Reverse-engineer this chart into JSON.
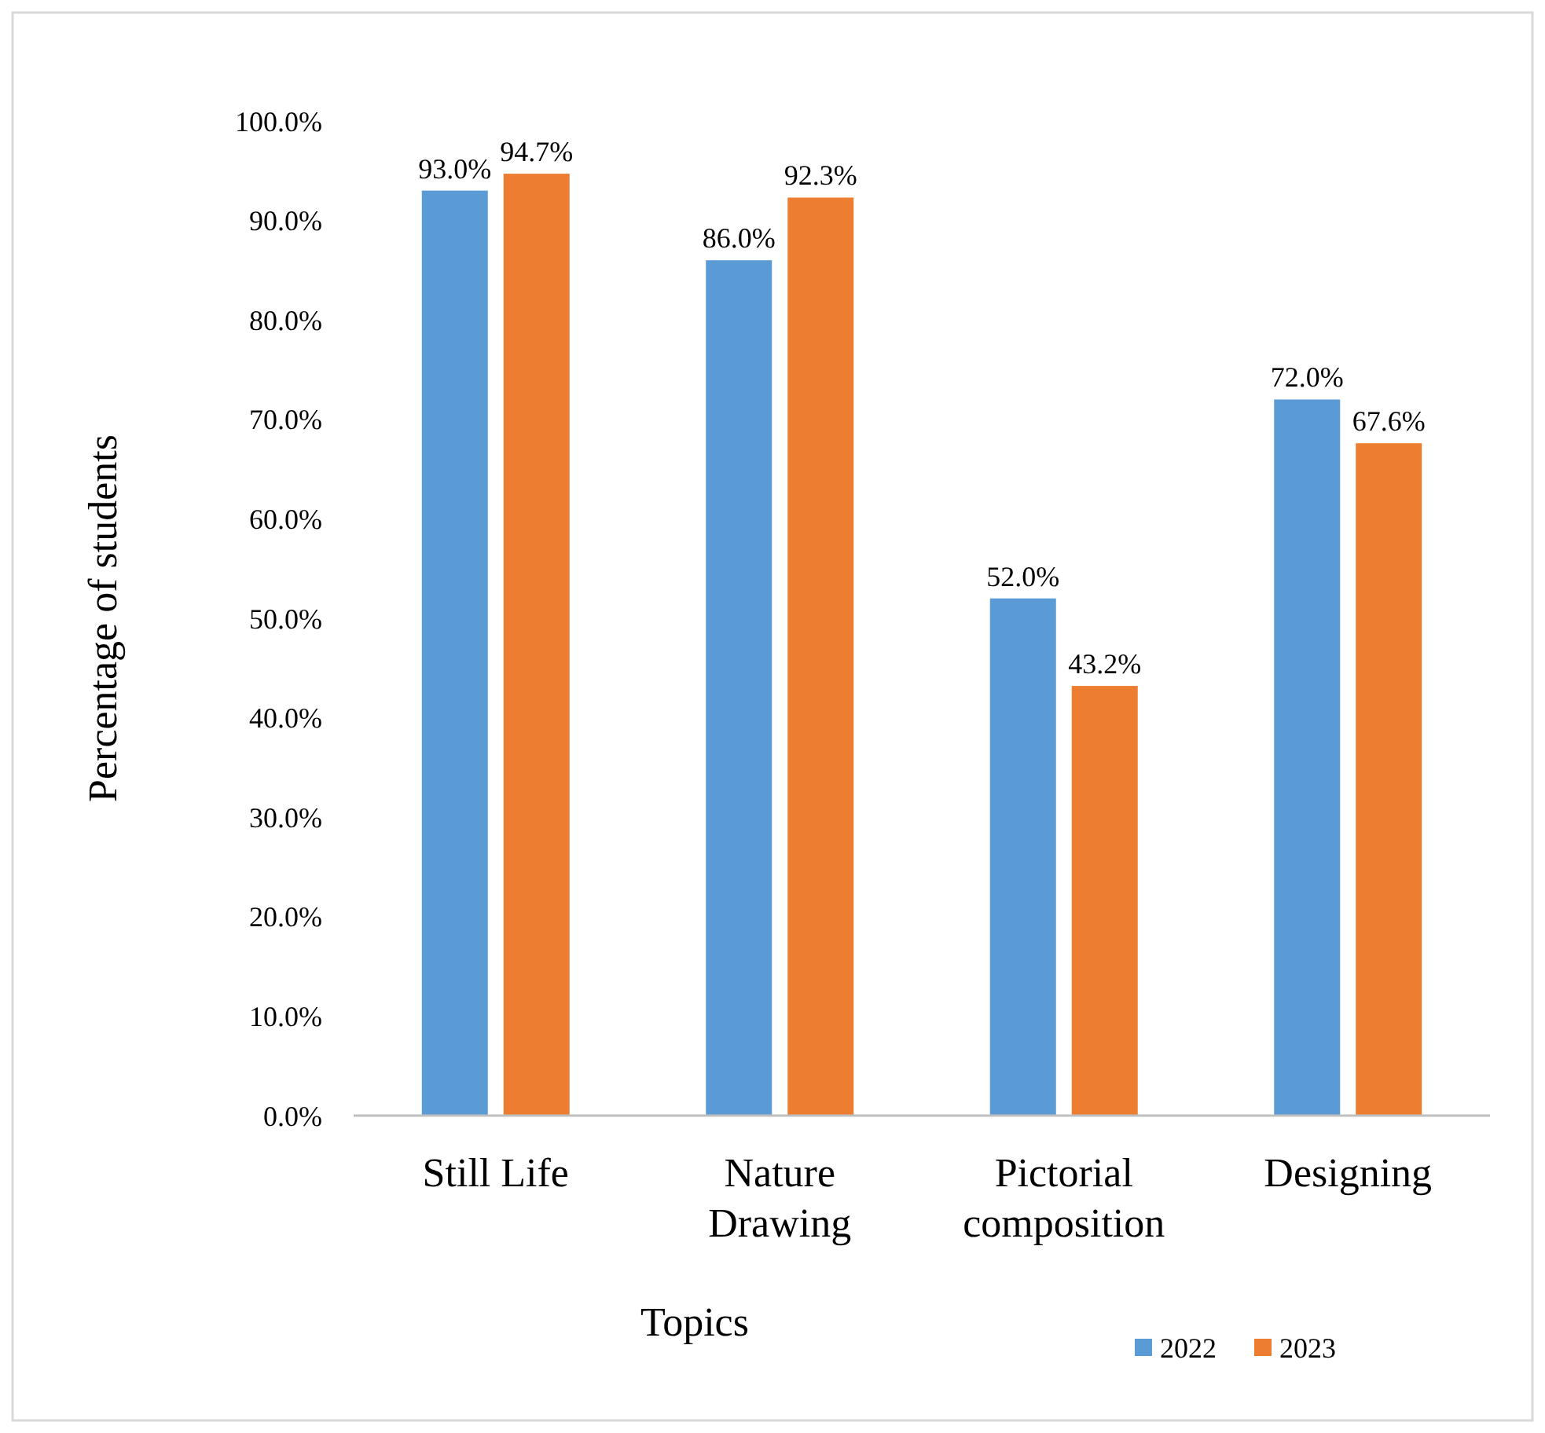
{
  "chart_data": {
    "type": "bar",
    "xlabel": "Topics",
    "ylabel": "Percentage of students",
    "categories": [
      "Still Life",
      "Nature Drawing",
      "Pictorial composition",
      "Designing"
    ],
    "series": [
      {
        "name": "2022",
        "color": "#5b9bd5",
        "values": [
          93.0,
          86.0,
          52.0,
          72.0
        ],
        "value_labels": [
          "93.0%",
          "86.0%",
          "52.0%",
          "72.0%"
        ]
      },
      {
        "name": "2023",
        "color": "#ed7d31",
        "values": [
          94.7,
          92.3,
          43.2,
          67.6
        ],
        "value_labels": [
          "94.7%",
          "92.3%",
          "43.2%",
          "67.6%"
        ]
      }
    ],
    "ylim": [
      0,
      100
    ],
    "yticks": [
      {
        "value": 0,
        "label": "0.0%"
      },
      {
        "value": 10,
        "label": "10.0%"
      },
      {
        "value": 20,
        "label": "20.0%"
      },
      {
        "value": 30,
        "label": "30.0%"
      },
      {
        "value": 40,
        "label": "40.0%"
      },
      {
        "value": 50,
        "label": "50.0%"
      },
      {
        "value": 60,
        "label": "60.0%"
      },
      {
        "value": 70,
        "label": "70.0%"
      },
      {
        "value": 80,
        "label": "80.0%"
      },
      {
        "value": 90,
        "label": "90.0%"
      },
      {
        "value": 100,
        "label": "100.0%"
      }
    ],
    "grid": false,
    "legend": "bottom right"
  }
}
